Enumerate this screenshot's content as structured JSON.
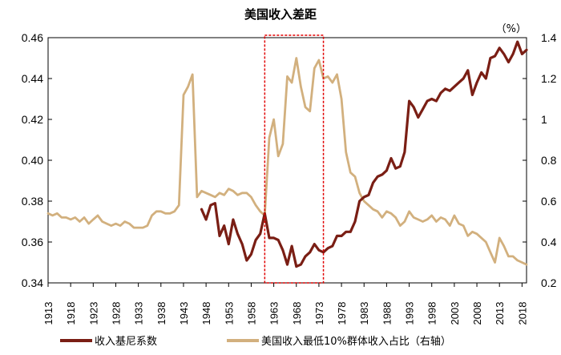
{
  "chart_data": {
    "type": "line",
    "title": "美国收入差距",
    "unit_right": "（%）",
    "xlabel": "",
    "x_ticks": [
      "1913",
      "1918",
      "1923",
      "1928",
      "1933",
      "1938",
      "1943",
      "1948",
      "1953",
      "1958",
      "1963",
      "1968",
      "1973",
      "1978",
      "1983",
      "1988",
      "1993",
      "1998",
      "2003",
      "2008",
      "2013",
      "2018"
    ],
    "x_range": [
      1913,
      2019
    ],
    "left_axis": {
      "ylim": [
        0.34,
        0.46
      ],
      "ticks": [
        "0.34",
        "0.36",
        "0.38",
        "0.40",
        "0.42",
        "0.44",
        "0.46"
      ]
    },
    "right_axis": {
      "ylim": [
        0.2,
        1.4
      ],
      "ticks": [
        "0.2",
        "0.4",
        "0.6",
        "0.8",
        "1",
        "1.2",
        "1.4"
      ]
    },
    "highlight": {
      "x_start": 1961,
      "x_end": 1974
    },
    "colors": {
      "gini": "#7a1e14",
      "share": "#d2b07e",
      "highlight": "#e00000"
    },
    "series": [
      {
        "name": "收入基尼系数",
        "axis": "left",
        "x": [
          1947,
          1948,
          1949,
          1950,
          1951,
          1952,
          1953,
          1954,
          1955,
          1956,
          1957,
          1958,
          1959,
          1960,
          1961,
          1962,
          1963,
          1964,
          1965,
          1966,
          1967,
          1968,
          1969,
          1970,
          1971,
          1972,
          1973,
          1974,
          1975,
          1976,
          1977,
          1978,
          1979,
          1980,
          1981,
          1982,
          1983,
          1984,
          1985,
          1986,
          1987,
          1988,
          1989,
          1990,
          1991,
          1992,
          1993,
          1994,
          1995,
          1996,
          1997,
          1998,
          1999,
          2000,
          2001,
          2002,
          2003,
          2004,
          2005,
          2006,
          2007,
          2008,
          2009,
          2010,
          2011,
          2012,
          2013,
          2014,
          2015,
          2016,
          2017,
          2018,
          2019
        ],
        "values": [
          0.376,
          0.371,
          0.378,
          0.379,
          0.363,
          0.368,
          0.359,
          0.371,
          0.364,
          0.359,
          0.351,
          0.354,
          0.361,
          0.364,
          0.374,
          0.362,
          0.362,
          0.361,
          0.356,
          0.349,
          0.358,
          0.348,
          0.349,
          0.353,
          0.355,
          0.359,
          0.356,
          0.355,
          0.357,
          0.358,
          0.363,
          0.363,
          0.365,
          0.365,
          0.37,
          0.38,
          0.382,
          0.383,
          0.389,
          0.392,
          0.393,
          0.395,
          0.401,
          0.396,
          0.397,
          0.404,
          0.429,
          0.426,
          0.421,
          0.425,
          0.429,
          0.43,
          0.429,
          0.433,
          0.435,
          0.434,
          0.436,
          0.438,
          0.44,
          0.444,
          0.432,
          0.438,
          0.443,
          0.44,
          0.45,
          0.451,
          0.455,
          0.452,
          0.448,
          0.452,
          0.458,
          0.452,
          0.454
        ]
      },
      {
        "name": "美国收入最低10%群体收入占比（右轴）",
        "axis": "right",
        "x": [
          1913,
          1914,
          1915,
          1916,
          1917,
          1918,
          1919,
          1920,
          1921,
          1922,
          1923,
          1924,
          1925,
          1926,
          1927,
          1928,
          1929,
          1930,
          1931,
          1932,
          1933,
          1934,
          1935,
          1936,
          1937,
          1938,
          1939,
          1940,
          1941,
          1942,
          1943,
          1944,
          1945,
          1946,
          1947,
          1948,
          1949,
          1950,
          1951,
          1952,
          1953,
          1954,
          1955,
          1956,
          1957,
          1958,
          1959,
          1960,
          1961,
          1962,
          1963,
          1964,
          1965,
          1966,
          1967,
          1968,
          1969,
          1970,
          1971,
          1972,
          1973,
          1974,
          1975,
          1976,
          1977,
          1978,
          1979,
          1980,
          1981,
          1982,
          1983,
          1984,
          1985,
          1986,
          1987,
          1988,
          1989,
          1990,
          1991,
          1992,
          1993,
          1994,
          1995,
          1996,
          1997,
          1998,
          1999,
          2000,
          2001,
          2002,
          2003,
          2004,
          2005,
          2006,
          2007,
          2008,
          2009,
          2010,
          2011,
          2012,
          2013,
          2014,
          2015,
          2016,
          2017,
          2018,
          2019
        ],
        "values": [
          0.54,
          0.53,
          0.54,
          0.52,
          0.52,
          0.51,
          0.52,
          0.5,
          0.52,
          0.49,
          0.51,
          0.53,
          0.5,
          0.49,
          0.48,
          0.49,
          0.48,
          0.5,
          0.49,
          0.47,
          0.47,
          0.47,
          0.48,
          0.53,
          0.55,
          0.55,
          0.54,
          0.54,
          0.55,
          0.58,
          1.12,
          1.16,
          1.22,
          0.62,
          0.65,
          0.64,
          0.63,
          0.62,
          0.64,
          0.63,
          0.66,
          0.65,
          0.63,
          0.64,
          0.64,
          0.62,
          0.58,
          0.55,
          0.53,
          0.91,
          1.0,
          0.82,
          0.88,
          1.21,
          1.18,
          1.3,
          1.16,
          1.06,
          1.04,
          1.25,
          1.29,
          1.2,
          1.21,
          1.18,
          1.22,
          1.1,
          0.84,
          0.74,
          0.72,
          0.64,
          0.6,
          0.58,
          0.56,
          0.55,
          0.52,
          0.55,
          0.54,
          0.52,
          0.48,
          0.5,
          0.55,
          0.52,
          0.51,
          0.5,
          0.51,
          0.53,
          0.5,
          0.52,
          0.51,
          0.48,
          0.53,
          0.49,
          0.48,
          0.43,
          0.45,
          0.44,
          0.42,
          0.4,
          0.35,
          0.3,
          0.42,
          0.38,
          0.33,
          0.33,
          0.31,
          0.3,
          0.29
        ]
      }
    ]
  }
}
